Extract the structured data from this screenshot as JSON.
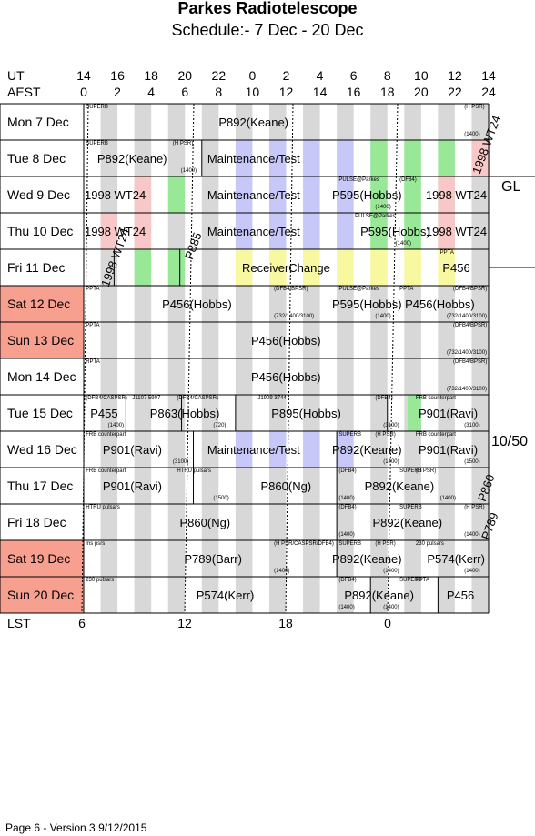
{
  "header": {
    "title": "Parkes Radiotelescope",
    "subtitle": "Schedule:- 7  Dec - 20 Dec"
  },
  "axes": {
    "ut_label": "UT",
    "aest_label": "AEST",
    "lst_label": "LST",
    "ut_ticks": [
      "14",
      "16",
      "18",
      "20",
      "22",
      "0",
      "2",
      "4",
      "6",
      "8",
      "10",
      "12",
      "14"
    ],
    "aest_ticks": [
      "0",
      "2",
      "4",
      "6",
      "8",
      "10",
      "12",
      "14",
      "16",
      "18",
      "20",
      "22",
      "24"
    ],
    "lst_ticks": [
      "6",
      "12",
      "18",
      "0"
    ]
  },
  "days": [
    {
      "label": "Mon   7  Dec",
      "weekend": false
    },
    {
      "label": "Tue   8  Dec",
      "weekend": false
    },
    {
      "label": "Wed   9  Dec",
      "weekend": false
    },
    {
      "label": "Thu  10  Dec",
      "weekend": false
    },
    {
      "label": "Fri   11  Dec",
      "weekend": false
    },
    {
      "label": "Sat   12  Dec",
      "weekend": true
    },
    {
      "label": "Sun  13  Dec",
      "weekend": true
    },
    {
      "label": "Mon  14  Dec",
      "weekend": false
    },
    {
      "label": "Tue   15  Dec",
      "weekend": false
    },
    {
      "label": "Wed  16  Dec",
      "weekend": false
    },
    {
      "label": "Thu   17  Dec",
      "weekend": false
    },
    {
      "label": "Fri    18  Dec",
      "weekend": false
    },
    {
      "label": "Sat   19  Dec",
      "weekend": true
    },
    {
      "label": "Sun  20  Dec",
      "weekend": true
    }
  ],
  "side_labels": {
    "gl": "GL",
    "receiver": "10/50"
  },
  "projects": [
    {
      "row": 0,
      "text": "P892(Keane)",
      "x": 0.42
    },
    {
      "row": 1,
      "text": "P892(Keane)",
      "x": 0.12
    },
    {
      "row": 1,
      "text": "Maintenance/Test",
      "x": 0.42
    },
    {
      "row": 2,
      "text": "1998 WT24",
      "x": 0.0
    },
    {
      "row": 2,
      "text": "Maintenance/Test",
      "x": 0.42
    },
    {
      "row": 2,
      "text": "P595(Hobbs)",
      "x": 0.7
    },
    {
      "row": 2,
      "text": "1998 WT24",
      "x": 0.92
    },
    {
      "row": 3,
      "text": "Maintenance/Test",
      "x": 0.42
    },
    {
      "row": 3,
      "text": "P595(Hobbs)",
      "x": 0.77
    },
    {
      "row": 3,
      "text": "1998 WT24",
      "x": 0.92
    },
    {
      "row": 3,
      "text": "1998 WT24",
      "x": 0.0
    },
    {
      "row": 4,
      "text": "ReceiverChange",
      "x": 0.5
    },
    {
      "row": 4,
      "text": "P456",
      "x": 0.92
    },
    {
      "row": 5,
      "text": "P456(Hobbs)",
      "x": 0.28
    },
    {
      "row": 5,
      "text": "P595(Hobbs)",
      "x": 0.7
    },
    {
      "row": 5,
      "text": "P456(Hobbs)",
      "x": 0.88
    },
    {
      "row": 6,
      "text": "P456(Hobbs)",
      "x": 0.5
    },
    {
      "row": 7,
      "text": "P456(Hobbs)",
      "x": 0.5
    },
    {
      "row": 8,
      "text": "P455",
      "x": 0.05
    },
    {
      "row": 8,
      "text": "P863(Hobbs)",
      "x": 0.25
    },
    {
      "row": 8,
      "text": "P895(Hobbs)",
      "x": 0.55
    },
    {
      "row": 8,
      "text": "P901(Ravi)",
      "x": 0.9
    },
    {
      "row": 9,
      "text": "P901(Ravi)",
      "x": 0.12
    },
    {
      "row": 9,
      "text": "Maintenance/Test",
      "x": 0.42
    },
    {
      "row": 9,
      "text": "P892(Keane)",
      "x": 0.7
    },
    {
      "row": 9,
      "text": "P901(Ravi)",
      "x": 0.9
    },
    {
      "row": 10,
      "text": "P901(Ravi)",
      "x": 0.12
    },
    {
      "row": 10,
      "text": "P860(Ng)",
      "x": 0.5
    },
    {
      "row": 10,
      "text": "P892(Keane)",
      "x": 0.78
    },
    {
      "row": 11,
      "text": "P860(Ng)",
      "x": 0.3
    },
    {
      "row": 11,
      "text": "P892(Keane)",
      "x": 0.8
    },
    {
      "row": 12,
      "text": "P789(Barr)",
      "x": 0.32
    },
    {
      "row": 12,
      "text": "P892(Keane)",
      "x": 0.7
    },
    {
      "row": 12,
      "text": "P574(Kerr)",
      "x": 0.92
    },
    {
      "row": 13,
      "text": "P574(Kerr)",
      "x": 0.35
    },
    {
      "row": 13,
      "text": "P892(Keane)",
      "x": 0.73
    },
    {
      "row": 13,
      "text": "P456",
      "x": 0.93
    }
  ],
  "small_labels": [
    {
      "row": 0,
      "text": "SUPERB",
      "pos": "tl"
    },
    {
      "row": 0,
      "text": "(H PSR)",
      "pos": "tr"
    },
    {
      "row": 0,
      "text": "(1400)",
      "pos": "br"
    },
    {
      "row": 1,
      "text": "SUPERB",
      "pos": "tl"
    },
    {
      "row": 1,
      "text": "(H PSR)",
      "pos": "t2"
    },
    {
      "row": 1,
      "text": "(1400)",
      "pos": "b2"
    },
    {
      "row": 2,
      "text": "PULSE@Parkes",
      "pos": "t3"
    },
    {
      "row": 2,
      "text": "(DF84)",
      "pos": "t4"
    },
    {
      "row": 2,
      "text": "(1400)",
      "pos": "b4"
    },
    {
      "row": 3,
      "text": "PULSE@Parkes",
      "pos": "t5"
    },
    {
      "row": 3,
      "text": "(1400)",
      "pos": "b5"
    },
    {
      "row": 4,
      "text": "PPTA",
      "pos": "t6"
    },
    {
      "row": 5,
      "text": "PPTA",
      "pos": "tl"
    },
    {
      "row": 5,
      "text": "(DFB4/BPSR)",
      "pos": "t7"
    },
    {
      "row": 5,
      "text": "PULSE@Parkes",
      "pos": "t3"
    },
    {
      "row": 5,
      "text": "PPTA",
      "pos": "t8"
    },
    {
      "row": 5,
      "text": "(DFB4/BPSR)",
      "pos": "tr"
    },
    {
      "row": 5,
      "text": "(732/1400/3100)",
      "pos": "b7"
    },
    {
      "row": 5,
      "text": "(1400)",
      "pos": "b4"
    },
    {
      "row": 5,
      "text": "(732/1400/3100)",
      "pos": "br"
    },
    {
      "row": 6,
      "text": "PPTA",
      "pos": "tl"
    },
    {
      "row": 6,
      "text": "(DFB4/BPSR)",
      "pos": "tr"
    },
    {
      "row": 6,
      "text": "(732/1400/3100)",
      "pos": "br"
    },
    {
      "row": 7,
      "text": "RPTA",
      "pos": "tl"
    },
    {
      "row": 7,
      "text": "(DFB4/BPSR)",
      "pos": "tr"
    },
    {
      "row": 7,
      "text": "(732/1400/3100)",
      "pos": "br"
    },
    {
      "row": 8,
      "text": "(DFB4/CASPSR)",
      "pos": "tl"
    },
    {
      "row": 8,
      "text": "J1107 5907",
      "pos": "t9"
    },
    {
      "row": 8,
      "text": "(DFB4/CASPSR)",
      "pos": "t10"
    },
    {
      "row": 8,
      "text": "J1909 3744",
      "pos": "t11"
    },
    {
      "row": 8,
      "text": "(DFB4)",
      "pos": "t12"
    },
    {
      "row": 8,
      "text": "FRB counterpart",
      "pos": "t13"
    },
    {
      "row": 8,
      "text": "(1400)",
      "pos": "b1"
    },
    {
      "row": 8,
      "text": "(720)",
      "pos": "b10"
    },
    {
      "row": 8,
      "text": "(3100)",
      "pos": "b12"
    },
    {
      "row": 8,
      "text": "(3100)",
      "pos": "br"
    },
    {
      "row": 9,
      "text": "FRB counterpart",
      "pos": "tl"
    },
    {
      "row": 9,
      "text": "SUPERB",
      "pos": "t3"
    },
    {
      "row": 9,
      "text": "(H PSR)",
      "pos": "t12"
    },
    {
      "row": 9,
      "text": "FRB counterpart",
      "pos": "t13"
    },
    {
      "row": 9,
      "text": "(3100)",
      "pos": "b9"
    },
    {
      "row": 9,
      "text": "(1400)",
      "pos": "b12"
    },
    {
      "row": 9,
      "text": "(1500)",
      "pos": "br"
    },
    {
      "row": 10,
      "text": "FRB counterpart",
      "pos": "tl"
    },
    {
      "row": 10,
      "text": "HTRU pulsars",
      "pos": "t10"
    },
    {
      "row": 10,
      "text": "(DFB4)",
      "pos": "t3"
    },
    {
      "row": 10,
      "text": "SUPERB",
      "pos": "t4"
    },
    {
      "row": 10,
      "text": "(H PSR)",
      "pos": "t13"
    },
    {
      "row": 10,
      "text": "(1500)",
      "pos": "b10"
    },
    {
      "row": 10,
      "text": "(1400)",
      "pos": "b3"
    },
    {
      "row": 10,
      "text": "(1400)",
      "pos": "b13"
    },
    {
      "row": 11,
      "text": "HTRU pulsars",
      "pos": "tl"
    },
    {
      "row": 11,
      "text": "(DFB4)",
      "pos": "t3"
    },
    {
      "row": 11,
      "text": "SUPERB",
      "pos": "t4"
    },
    {
      "row": 11,
      "text": "(H PSR)",
      "pos": "tr"
    },
    {
      "row": 11,
      "text": "(1400)",
      "pos": "b3"
    },
    {
      "row": 11,
      "text": "(1400)",
      "pos": "br"
    },
    {
      "row": 12,
      "text": "ms psrs",
      "pos": "tl"
    },
    {
      "row": 12,
      "text": "(H PSR/CASPSR/DFB4)",
      "pos": "t7"
    },
    {
      "row": 12,
      "text": "SUPERB",
      "pos": "t3"
    },
    {
      "row": 12,
      "text": "(H PSR)",
      "pos": "t12"
    },
    {
      "row": 12,
      "text": "230 pulsars",
      "pos": "t13"
    },
    {
      "row": 12,
      "text": "(1400)",
      "pos": "b7"
    },
    {
      "row": 12,
      "text": "(1400)",
      "pos": "b12"
    },
    {
      "row": 12,
      "text": "(1400)",
      "pos": "br"
    },
    {
      "row": 13,
      "text": "230 pulsars",
      "pos": "tl"
    },
    {
      "row": 13,
      "text": "(DFB4)",
      "pos": "t3"
    },
    {
      "row": 13,
      "text": "SUPERB",
      "pos": "t4"
    },
    {
      "row": 13,
      "text": "PPTA",
      "pos": "t13"
    },
    {
      "row": 13,
      "text": "(1400)",
      "pos": "b3"
    },
    {
      "row": 13,
      "text": "(1400)",
      "pos": "b12"
    }
  ],
  "vertical_labels": [
    {
      "text": "1998 WT24"
    },
    {
      "text": "1998 WT24"
    },
    {
      "text": "P885"
    },
    {
      "text": "P860"
    },
    {
      "text": "P789"
    }
  ],
  "footer": "Page 6 - Version 3  9/12/2015",
  "colors": {
    "weekend": "#f8a090",
    "grey": "#d8d8d8",
    "blue": "#c8c8f8",
    "green": "#98e898",
    "pink": "#f8c8c8",
    "yellow": "#f8f8a0"
  }
}
